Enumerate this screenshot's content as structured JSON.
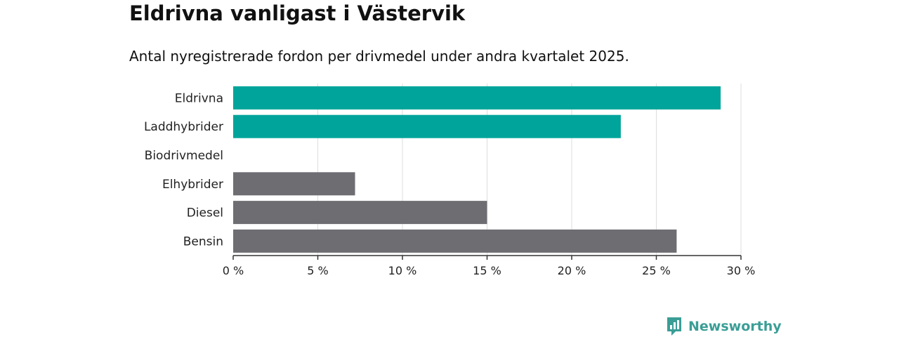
{
  "title": "Eldrivna vanligast i Västervik",
  "subtitle": "Antal nyregistrerade fordon per drivmedel under andra kvartalet 2025.",
  "brand": {
    "name": "Newsworthy",
    "icon": "newsworthy-logo-icon"
  },
  "colors": {
    "highlight": "#00a49a",
    "other": "#6e6d72",
    "grid": "#dddddd",
    "axis": "#333333"
  },
  "chart_data": {
    "type": "bar",
    "orientation": "horizontal",
    "categories": [
      "Eldrivna",
      "Laddhybrider",
      "Biodrivmedel",
      "Elhybrider",
      "Diesel",
      "Bensin"
    ],
    "values": [
      28.8,
      22.9,
      0,
      7.2,
      15.0,
      26.2
    ],
    "highlighted": [
      true,
      true,
      false,
      false,
      false,
      false
    ],
    "xlim": [
      0,
      30
    ],
    "xticks": [
      0,
      5,
      10,
      15,
      20,
      25,
      30
    ],
    "tick_labels": [
      "0 %",
      "5 %",
      "10 %",
      "15 %",
      "20 %",
      "25 %",
      "30 %"
    ],
    "grid": true
  }
}
